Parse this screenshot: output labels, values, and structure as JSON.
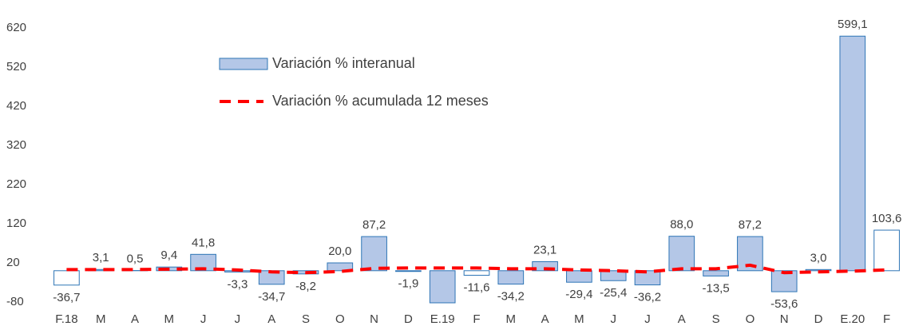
{
  "chart_data": {
    "type": "bar",
    "categories": [
      "F.18",
      "M",
      "A",
      "M",
      "J",
      "J",
      "A",
      "S",
      "O",
      "N",
      "D",
      "E.19",
      "F",
      "M",
      "A",
      "M",
      "J",
      "J",
      "A",
      "S",
      "O",
      "N",
      "D",
      "E.20",
      "F"
    ],
    "series": [
      {
        "name": "Variación % interanual",
        "type": "bar",
        "color": "#b4c7e7",
        "edge_color": "#2e75b6",
        "bar_fills": [
          "#ffffff",
          "#b4c7e7",
          "#b4c7e7",
          "#b4c7e7",
          "#b4c7e7",
          "#b4c7e7",
          "#b4c7e7",
          "#b4c7e7",
          "#b4c7e7",
          "#b4c7e7",
          "#b4c7e7",
          "#b4c7e7",
          "#ffffff",
          "#b4c7e7",
          "#b4c7e7",
          "#b4c7e7",
          "#b4c7e7",
          "#b4c7e7",
          "#b4c7e7",
          "#b4c7e7",
          "#b4c7e7",
          "#b4c7e7",
          "#b4c7e7",
          "#b4c7e7",
          "#ffffff"
        ],
        "values": [
          -36.7,
          3.1,
          0.5,
          9.4,
          41.8,
          -3.3,
          -34.7,
          -8.2,
          20.0,
          87.2,
          -1.9,
          -82,
          -11.6,
          -34.2,
          23.1,
          -29.4,
          -25.4,
          -36.2,
          88.0,
          -13.5,
          87.2,
          -53.6,
          3.0,
          599.1,
          103.6
        ],
        "value_labels": [
          "-36,7",
          "3,1",
          "0,5",
          "9,4",
          "41,8",
          "-3,3",
          "-34,7",
          "-8,2",
          "20,0",
          "87,2",
          "-1,9",
          null,
          "-11,6",
          "-34,2",
          "23,1",
          "-29,4",
          "-25,4",
          "-36,2",
          "88,0",
          "-13,5",
          "87,2",
          "-53,6",
          "3,0",
          "599,1",
          "103,6"
        ]
      },
      {
        "name": "Variación % acumulada 12 meses",
        "type": "line",
        "color": "#ff0000",
        "dashed": true,
        "values": [
          3,
          3,
          3,
          4,
          5,
          2,
          -3,
          -5,
          -2,
          6,
          7,
          7,
          7,
          5,
          5,
          2,
          0,
          -3,
          5,
          5,
          14,
          -5,
          -3,
          -1,
          2
        ]
      }
    ],
    "ylim": [
      -80,
      620
    ],
    "yticks": [
      -80,
      20,
      120,
      220,
      320,
      420,
      520,
      620
    ]
  }
}
